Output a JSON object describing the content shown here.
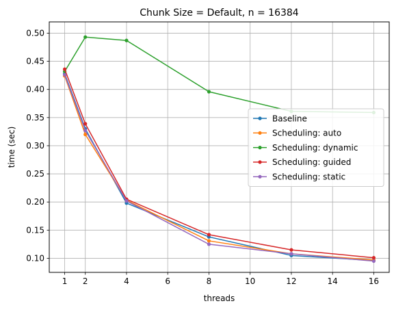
{
  "chart_data": {
    "type": "line",
    "title": "Chunk Size = Default, n = 16384",
    "xlabel": "threads",
    "ylabel": "time (sec)",
    "xlim": [
      0.25,
      16.75
    ],
    "ylim": [
      0.075,
      0.52
    ],
    "xticks": [
      1,
      2,
      4,
      6,
      8,
      10,
      12,
      14,
      16
    ],
    "yticks": [
      0.1,
      0.15,
      0.2,
      0.25,
      0.3,
      0.35,
      0.4,
      0.45,
      0.5
    ],
    "xtick_labels": [
      "1",
      "2",
      "4",
      "6",
      "8",
      "10",
      "12",
      "14",
      "16"
    ],
    "ytick_labels": [
      "0.10",
      "0.15",
      "0.20",
      "0.25",
      "0.30",
      "0.35",
      "0.40",
      "0.45",
      "0.50"
    ],
    "grid": true,
    "legend_position": "center-right",
    "x": [
      1,
      2,
      4,
      8,
      12,
      16
    ],
    "series": [
      {
        "name": "Baseline",
        "color": "#1f77b4",
        "values": [
          0.428,
          0.33,
          0.198,
          0.138,
          0.105,
          0.096
        ]
      },
      {
        "name": "Scheduling: auto",
        "color": "#ff7f0e",
        "values": [
          0.424,
          0.32,
          0.203,
          0.131,
          0.108,
          0.097
        ]
      },
      {
        "name": "Scheduling: dynamic",
        "color": "#2ca02c",
        "values": [
          0.432,
          0.493,
          0.487,
          0.396,
          0.361,
          0.359
        ]
      },
      {
        "name": "Scheduling: guided",
        "color": "#d62728",
        "values": [
          0.436,
          0.339,
          0.205,
          0.142,
          0.115,
          0.101
        ]
      },
      {
        "name": "Scheduling: static",
        "color": "#9467bd",
        "values": [
          0.426,
          0.327,
          0.202,
          0.125,
          0.108,
          0.095
        ]
      }
    ]
  }
}
